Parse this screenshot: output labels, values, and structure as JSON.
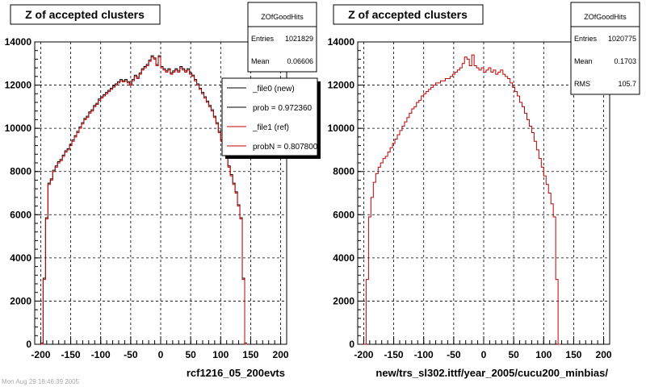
{
  "chart_data": [
    {
      "type": "histogram",
      "title": "Z of accepted clusters",
      "xlabel": "rcf1216_05_200evts",
      "ylabel": "",
      "xlim": [
        -210,
        210
      ],
      "ylim": [
        0,
        14000
      ],
      "x_ticks": [
        "-200",
        "-150",
        "-100",
        "-50",
        "0",
        "50",
        "100",
        "150",
        "200"
      ],
      "y_ticks": [
        "0",
        "2000",
        "4000",
        "6000",
        "8000",
        "10000",
        "12000",
        "14000"
      ],
      "grid": true,
      "stats": {
        "name": "ZOfGoodHits",
        "rows": [
          {
            "label": "Entries",
            "value": "1021829"
          },
          {
            "label": "Mean",
            "value": "0.06606"
          }
        ]
      },
      "legend": {
        "placement": "top-right",
        "entries": [
          {
            "label": "_file0 (new)",
            "color": "#000000"
          },
          {
            "label": "prob = 0.972360",
            "color": "#000000"
          },
          {
            "label": "_file1 (ref)",
            "color": "#c00000"
          },
          {
            "label": "probN = 0.807800",
            "color": "#c00000"
          }
        ]
      },
      "series": [
        {
          "name": "_file0 (new)",
          "color": "#000000"
        },
        {
          "name": "_file1 (ref)",
          "color": "#c00000"
        }
      ],
      "bins": {
        "xmin": -200,
        "width": 4,
        "values": [
          0,
          3000,
          5800,
          7400,
          7600,
          8000,
          8200,
          8400,
          8500,
          8700,
          8900,
          9000,
          9200,
          9400,
          9600,
          9800,
          10000,
          10200,
          10400,
          10500,
          10700,
          10800,
          11000,
          11100,
          11300,
          11400,
          11500,
          11600,
          11700,
          11800,
          11900,
          12000,
          12100,
          12200,
          12150,
          12200,
          12100,
          12000,
          12200,
          12400,
          12300,
          12500,
          12700,
          12800,
          12900,
          13100,
          13300,
          13200,
          12900,
          13300,
          12800,
          12700,
          12600,
          12700,
          12500,
          12600,
          12700,
          12600,
          12800,
          12700,
          12600,
          12700,
          12500,
          12400,
          12200,
          12000,
          11800,
          11600,
          11400,
          11200,
          11000,
          10800,
          10500,
          10200,
          9800,
          9400,
          9000,
          8700,
          8200,
          7800,
          7400,
          7000,
          6400,
          5800,
          3000,
          0
        ]
      }
    },
    {
      "type": "histogram",
      "title": "Z of accepted clusters",
      "xlabel": "new/trs_sl302.ittf/year_2005/cucu200_minbias/",
      "ylabel": "",
      "xlim": [
        -210,
        210
      ],
      "ylim": [
        0,
        14000
      ],
      "x_ticks": [
        "-200",
        "-150",
        "-100",
        "-50",
        "0",
        "50",
        "100",
        "150",
        "200"
      ],
      "y_ticks": [
        "0",
        "2000",
        "4000",
        "6000",
        "8000",
        "10000",
        "12000",
        "14000"
      ],
      "grid": true,
      "stats": {
        "name": "ZOfGoodHits",
        "rows": [
          {
            "label": "Entries",
            "value": "1020775"
          },
          {
            "label": "Mean",
            "value": "0.1703"
          },
          {
            "label": "RMS",
            "value": "105.7"
          }
        ]
      },
      "series": [
        {
          "name": "",
          "color": "#c00000"
        }
      ],
      "bins": {
        "xmin": -200,
        "width": 4,
        "values": [
          0,
          3000,
          5900,
          6800,
          7500,
          7900,
          8200,
          8400,
          8600,
          8700,
          8900,
          9100,
          9300,
          9500,
          9700,
          9900,
          10100,
          10300,
          10500,
          10700,
          10900,
          11000,
          11200,
          11300,
          11500,
          11600,
          11700,
          11800,
          11900,
          12000,
          12100,
          12100,
          12200,
          12200,
          12300,
          12300,
          12400,
          12500,
          12600,
          12700,
          12800,
          13000,
          13300,
          13200,
          12900,
          13400,
          12900,
          12800,
          12700,
          12800,
          12600,
          12700,
          12800,
          12600,
          12700,
          12500,
          12600,
          12700,
          12500,
          12400,
          12300,
          12100,
          11900,
          11700,
          11500,
          11200,
          11000,
          10700,
          10400,
          10100,
          9800,
          9400,
          9000,
          8600,
          8200,
          7800,
          7400,
          7000,
          6500,
          5900,
          3000,
          0
        ]
      }
    }
  ],
  "footer": {
    "stamp": "Mon Aug 29 18:46:39 2005"
  }
}
